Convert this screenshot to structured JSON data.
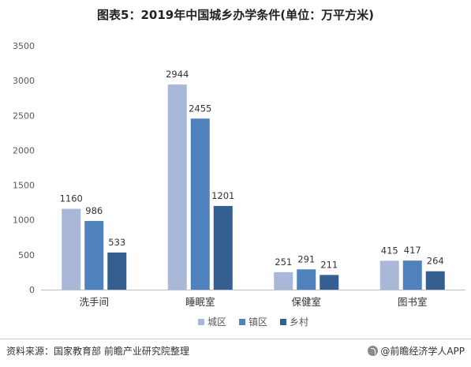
{
  "chart_data": {
    "type": "bar",
    "title": "图表5：2019年中国城乡办学条件(单位：万平方米)",
    "categories": [
      "洗手间",
      "睡眠室",
      "保健室",
      "图书室"
    ],
    "series": [
      {
        "name": "城区",
        "values": [
          1160,
          2944,
          251,
          415
        ],
        "color": "#a9b8d9"
      },
      {
        "name": "镇区",
        "values": [
          986,
          2455,
          291,
          417
        ],
        "color": "#4f81bd"
      },
      {
        "name": "乡村",
        "values": [
          533,
          1201,
          211,
          264
        ],
        "color": "#355f91"
      }
    ],
    "ylim": [
      0,
      3500
    ],
    "yticks": [
      0,
      500,
      1000,
      1500,
      2000,
      2500,
      3000,
      3500
    ],
    "grid": false,
    "legend": "bottom"
  },
  "footer": {
    "source": "资料来源：国家教育部 前瞻产业研究院整理",
    "brand": "@前瞻经济学人APP"
  }
}
